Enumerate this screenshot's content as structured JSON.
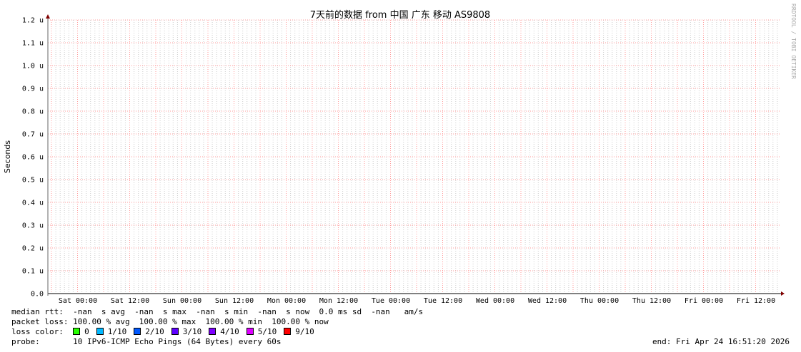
{
  "chart_data": {
    "type": "line",
    "title": "7天前的数据 from 中国 广东 移动 AS9808",
    "ylabel": "Seconds",
    "xlabel": "",
    "ylim": [
      0,
      1.2
    ],
    "y_unit_suffix": "u",
    "y_ticks": [
      "0.0",
      "0.1 u",
      "0.2 u",
      "0.3 u",
      "0.4 u",
      "0.5 u",
      "0.6 u",
      "0.7 u",
      "0.8 u",
      "0.9 u",
      "1.0 u",
      "1.1 u",
      "1.2 u"
    ],
    "x_ticks": [
      "Sat 00:00",
      "Sat 12:00",
      "Sun 00:00",
      "Sun 12:00",
      "Mon 00:00",
      "Mon 12:00",
      "Tue 00:00",
      "Tue 12:00",
      "Wed 00:00",
      "Wed 12:00",
      "Thu 00:00",
      "Thu 12:00",
      "Fri 00:00",
      "Fri 12:00"
    ],
    "series": [],
    "grid": true,
    "watermark": "RRDTOOL / TOBI OETIKER",
    "colors": {
      "major_grid": "#ff9999",
      "minor_grid": "#cccccc",
      "axis": "#000000",
      "arrow": "#800000"
    }
  },
  "legend": {
    "median_rtt": "median rtt:  -nan  s avg  -nan  s max  -nan  s min  -nan  s now  0.0 ms sd  -nan   am/s",
    "packet_loss": "packet loss: 100.00 % avg  100.00 % max  100.00 % min  100.00 % now",
    "loss_color_label": "loss color:",
    "loss_colors": [
      {
        "label": "0",
        "color": "#26ff00"
      },
      {
        "label": "1/10",
        "color": "#00b8ff"
      },
      {
        "label": "2/10",
        "color": "#0059ff"
      },
      {
        "label": "3/10",
        "color": "#5e00ff"
      },
      {
        "label": "4/10",
        "color": "#7e00ff"
      },
      {
        "label": "5/10",
        "color": "#dd00ff"
      },
      {
        "label": "9/10",
        "color": "#ff0000"
      }
    ],
    "probe_label": "probe:",
    "probe": "10 IPv6-ICMP Echo Pings (64 Bytes) every 60s",
    "end": "end: Fri Apr 24 16:51:20 2026"
  }
}
